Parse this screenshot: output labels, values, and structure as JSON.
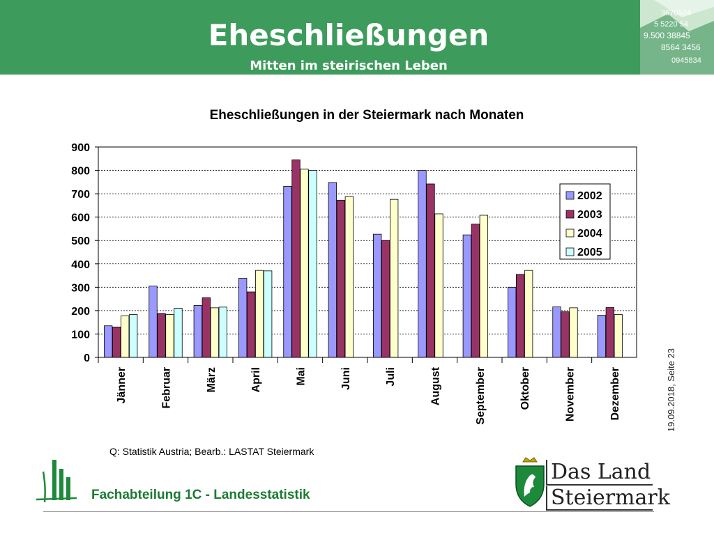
{
  "header": {
    "title": "Eheschließungen",
    "subtitle": "Mitten im steirischen Leben",
    "photo_numbers": [
      "3670524",
      "5 5220 54",
      "9.500 38845",
      "8564 3456",
      "0945834"
    ],
    "color": "#3d9b5c"
  },
  "chart_data": {
    "type": "bar",
    "title": "Eheschließungen in der Steiermark nach Monaten",
    "categories": [
      "Jänner",
      "Februar",
      "März",
      "April",
      "Mai",
      "Juni",
      "Juli",
      "August",
      "September",
      "Oktober",
      "November",
      "Dezember"
    ],
    "series": [
      {
        "name": "2002",
        "color": "#9999ff",
        "values": [
          135,
          305,
          222,
          338,
          732,
          748,
          527,
          800,
          524,
          300,
          216,
          180
        ]
      },
      {
        "name": "2003",
        "color": "#993366",
        "values": [
          130,
          188,
          255,
          280,
          845,
          672,
          500,
          742,
          570,
          355,
          195,
          213
        ]
      },
      {
        "name": "2004",
        "color": "#ffffcc",
        "values": [
          178,
          183,
          212,
          372,
          805,
          688,
          676,
          614,
          608,
          372,
          212,
          183
        ]
      },
      {
        "name": "2005",
        "color": "#ccffff",
        "values": [
          183,
          210,
          215,
          370,
          800,
          null,
          null,
          null,
          null,
          null,
          null,
          null
        ]
      }
    ],
    "ylim": [
      0,
      900
    ],
    "yticks": [
      0,
      100,
      200,
      300,
      400,
      500,
      600,
      700,
      800,
      900
    ],
    "grid": true,
    "legend_position": "right"
  },
  "side_text": "19.09.2018, Seite 23",
  "source": "Q: Statistik Austria; Bearb.: LASTAT Steiermark",
  "department": "Fachabteilung 1C -  Landesstatistik",
  "logo": {
    "line1": "Das Land",
    "line2": "Steiermark",
    "color": "#1c8a3a"
  }
}
